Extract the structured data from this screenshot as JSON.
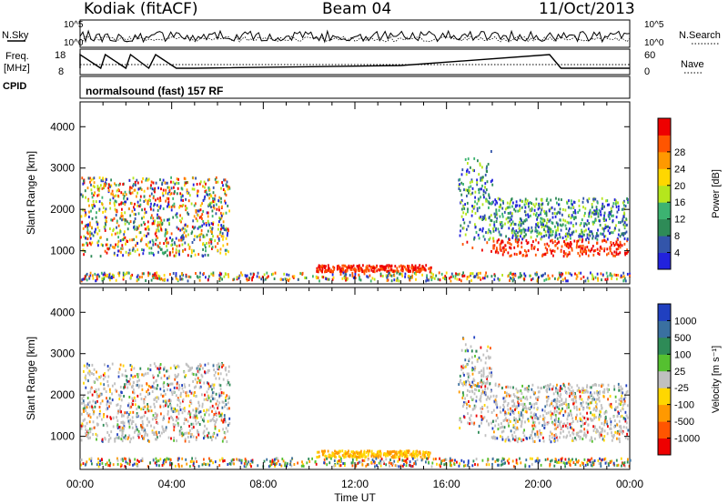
{
  "header": {
    "station": "Kodiak (fitACF)",
    "beam": "Beam 04",
    "date": "11/Oct/2013"
  },
  "aux_panels": {
    "nsky_label": "N.Sky",
    "nsearch_label": "N.Search",
    "log_top": "10^5",
    "log_bottom": "10^0",
    "freq_label_1": "Freq.",
    "freq_label_2": "[MHz]",
    "freq_top": "18",
    "freq_bottom": "8",
    "nave_label": "Nave",
    "nave_top": "60",
    "nave_bottom": "0",
    "cpid_label": "CPID",
    "cpid_value": "normalsound (fast) 157 RF"
  },
  "chart_data": [
    {
      "type": "heatmap",
      "title": "",
      "xlabel": "Time UT",
      "ylabel": "Slant Range [km]",
      "xticks": [
        "00:00",
        "04:00",
        "08:00",
        "12:00",
        "16:00",
        "20:00",
        "00:00"
      ],
      "yticks": [
        "1000",
        "2000",
        "3000",
        "4000"
      ],
      "ylim": [
        200,
        4600
      ],
      "xlim_hours": [
        0,
        24
      ],
      "colorbar_label": "Power [dB]",
      "colorbar_ticks": [
        "4",
        "8",
        "12",
        "16",
        "20",
        "24",
        "28"
      ],
      "colorbar_colors": [
        "#2222dd",
        "#3355aa",
        "#2e8b57",
        "#3cb371",
        "#b5e61d",
        "#ffd700",
        "#ff9900",
        "#ff5500",
        "#ee0000"
      ]
    },
    {
      "type": "heatmap",
      "title": "",
      "xlabel": "Time UT",
      "ylabel": "Slant Range [km]",
      "xticks": [
        "00:00",
        "04:00",
        "08:00",
        "12:00",
        "16:00",
        "20:00",
        "00:00"
      ],
      "yticks": [
        "1000",
        "2000",
        "3000",
        "4000"
      ],
      "ylim": [
        200,
        4600
      ],
      "xlim_hours": [
        0,
        24
      ],
      "colorbar_label": "Velocity [m s⁻¹]",
      "colorbar_ticks": [
        "1000",
        "500",
        "100",
        "25",
        "-25",
        "-100",
        "-500",
        "-1000"
      ],
      "colorbar_colors": [
        "#2040c0",
        "#3a70a0",
        "#2e8b57",
        "#55c030",
        "#c0c0c0",
        "#ffd700",
        "#ff9900",
        "#ff5500",
        "#ee0000"
      ]
    }
  ]
}
